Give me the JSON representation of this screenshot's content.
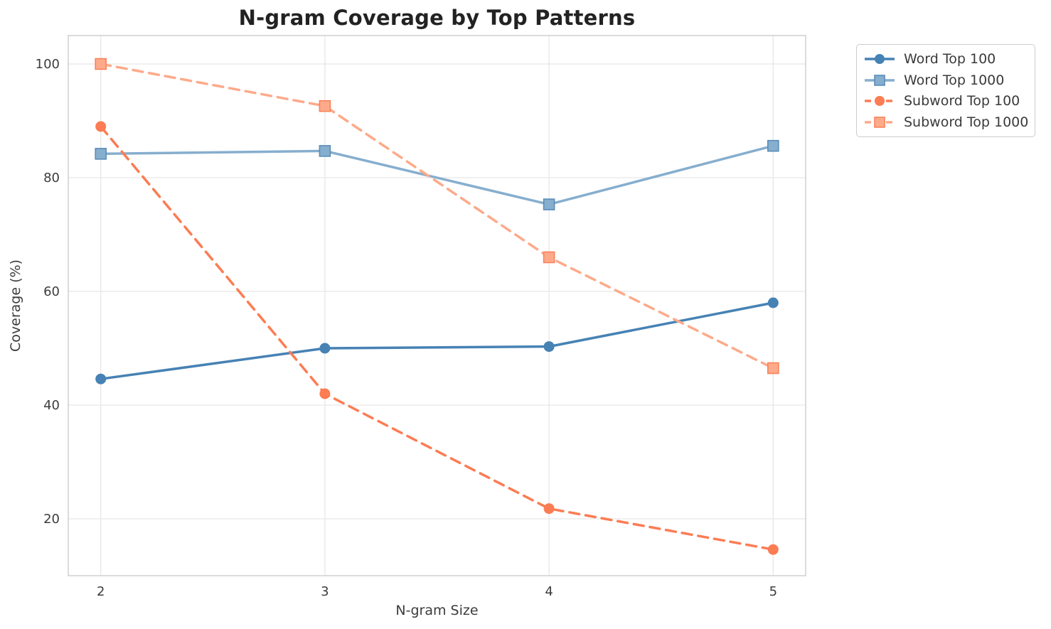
{
  "chart_data": {
    "type": "line",
    "title": "N-gram Coverage by Top Patterns",
    "xlabel": "N-gram Size",
    "ylabel": "Coverage (%)",
    "x": [
      2,
      3,
      4,
      5
    ],
    "xticks": [
      "2",
      "3",
      "4",
      "5"
    ],
    "yticks": [
      20,
      40,
      60,
      80,
      100
    ],
    "xlim": [
      1.855,
      5.145
    ],
    "ylim": [
      10,
      105
    ],
    "grid": true,
    "legend_position": "upper-right-outside",
    "series": [
      {
        "name": "Word Top 100",
        "values": [
          44.6,
          50.0,
          50.3,
          58.0
        ],
        "color": "#4682B4",
        "line_style": "solid",
        "marker": "circle",
        "marker_edge": "#4682B4"
      },
      {
        "name": "Word Top 1000",
        "values": [
          84.2,
          84.7,
          75.3,
          85.6
        ],
        "color": "#86AECE",
        "line_style": "solid",
        "marker": "square",
        "marker_edge": "#5B8DB8"
      },
      {
        "name": "Subword Top 100",
        "values": [
          89.0,
          42.0,
          21.8,
          14.6
        ],
        "color": "#FC7C53",
        "line_style": "dashed",
        "marker": "circle",
        "marker_edge": "#FC7C53"
      },
      {
        "name": "Subword Top 1000",
        "values": [
          100.0,
          92.6,
          66.0,
          46.5
        ],
        "color": "#FDAA8A",
        "line_style": "dashed",
        "marker": "square",
        "marker_edge": "#F9825B"
      }
    ],
    "style": {
      "grid_color": "#e7e7e7",
      "spine_color": "#cccccc",
      "title_color": "#222222",
      "tick_color": "#3c3c3c",
      "line_width": 3.5
    }
  }
}
